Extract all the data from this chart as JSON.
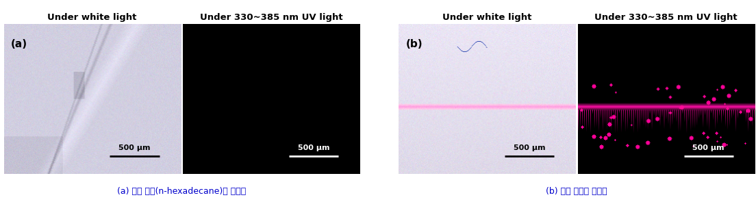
{
  "col_titles": [
    "Under white light",
    "Under 330~385 nm UV light"
  ],
  "label_a": "(a)",
  "label_b": "(b)",
  "caption_a": "(a) 비교 물질(n-hexadecane)의 흐름성",
  "caption_b": "(b) 치유 물질의 흐름성",
  "scalebar_text": "500 μm",
  "caption_color": "#0000cc",
  "background_color": "#ffffff",
  "fig_width": 11.04,
  "fig_height": 2.95,
  "title_fontsize": 9.5,
  "label_fontsize": 11,
  "scalebar_fontsize": 8,
  "caption_fontsize": 9
}
